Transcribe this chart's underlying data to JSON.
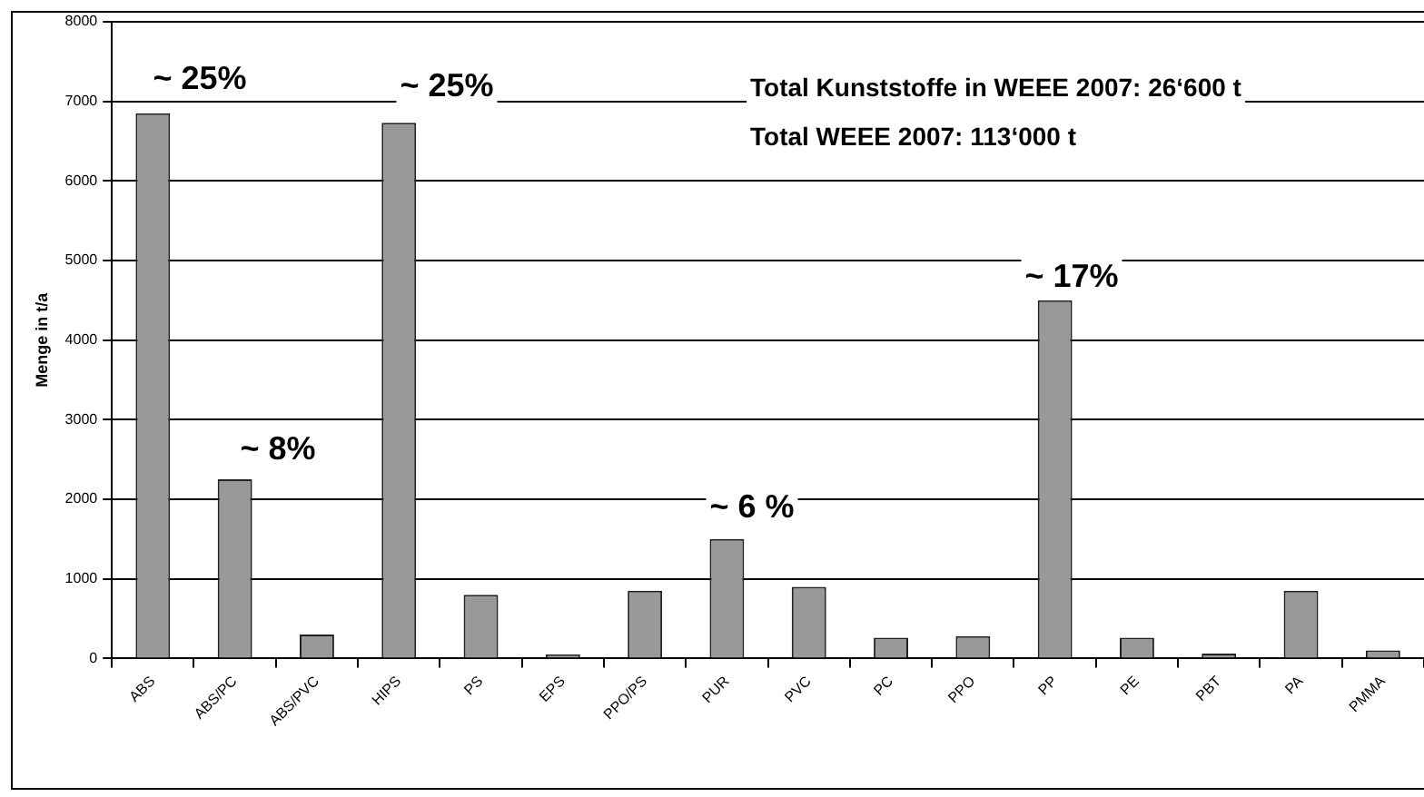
{
  "chart_data": {
    "type": "bar",
    "ylabel": "Menge in t/a",
    "categories": [
      "ABS",
      "ABS/PC",
      "ABS/PVC",
      "HIPS",
      "PS",
      "EPS",
      "PPO/PS",
      "PUR",
      "PVC",
      "PC",
      "PPO",
      "PP",
      "PE",
      "PBT",
      "PA",
      "PMMA"
    ],
    "values": [
      6850,
      2250,
      300,
      6730,
      800,
      50,
      850,
      1500,
      900,
      260,
      280,
      4500,
      260,
      60,
      850,
      100
    ],
    "color": "#999999",
    "ylim": [
      0,
      8000
    ],
    "yticks": [
      0,
      1000,
      2000,
      3000,
      4000,
      5000,
      6000,
      7000,
      8000
    ],
    "grid": "y",
    "annotations": [
      "~ 25%",
      "~ 8%",
      "~ 25%",
      "~ 6 %",
      "~ 17%",
      "Total Kunststoffe in WEEE 2007: 26‘600 t",
      "Total WEEE 2007: 113‘000 t"
    ]
  }
}
